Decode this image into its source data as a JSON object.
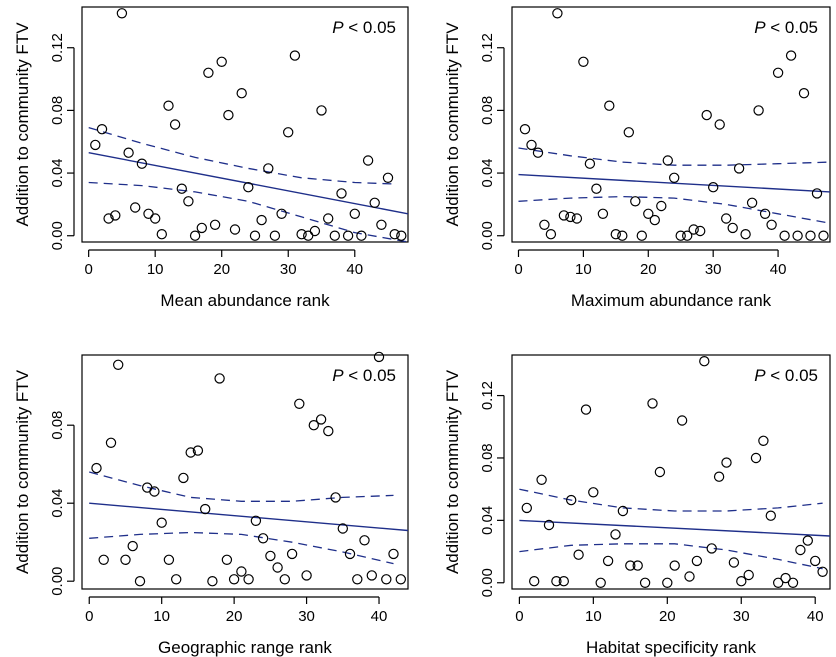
{
  "figure": {
    "p_label_italic": "P",
    "p_label_rest": " < 0.05"
  },
  "chart_data": [
    {
      "type": "scatter",
      "title": "",
      "xlabel": "Mean abundance rank",
      "ylabel": "Addition to community FTV",
      "annotation": "P < 0.05",
      "xlim": [
        -1,
        48
      ],
      "ylim": [
        -0.004,
        0.146
      ],
      "xticks": [
        0,
        10,
        20,
        30,
        40
      ],
      "yticks": [
        0.0,
        0.04,
        0.08,
        0.12
      ],
      "ytick_labels": [
        "0.00",
        "0.04",
        "0.08",
        "0.12"
      ],
      "points": [
        [
          1,
          0.058
        ],
        [
          2,
          0.068
        ],
        [
          3,
          0.011
        ],
        [
          4,
          0.013
        ],
        [
          5,
          0.142
        ],
        [
          6,
          0.053
        ],
        [
          7,
          0.018
        ],
        [
          8,
          0.046
        ],
        [
          9,
          0.014
        ],
        [
          10,
          0.011
        ],
        [
          11,
          0.001
        ],
        [
          12,
          0.083
        ],
        [
          13,
          0.071
        ],
        [
          14,
          0.03
        ],
        [
          15,
          0.022
        ],
        [
          16,
          0.0
        ],
        [
          17,
          0.005
        ],
        [
          18,
          0.104
        ],
        [
          19,
          0.007
        ],
        [
          20,
          0.111
        ],
        [
          21,
          0.077
        ],
        [
          22,
          0.004
        ],
        [
          23,
          0.091
        ],
        [
          24,
          0.031
        ],
        [
          25,
          0.0
        ],
        [
          26,
          0.01
        ],
        [
          27,
          0.043
        ],
        [
          28,
          0.0
        ],
        [
          29,
          0.014
        ],
        [
          30,
          0.066
        ],
        [
          31,
          0.115
        ],
        [
          32,
          0.001
        ],
        [
          33,
          0.0
        ],
        [
          34,
          0.003
        ],
        [
          35,
          0.08
        ],
        [
          36,
          0.011
        ],
        [
          37,
          0.0
        ],
        [
          38,
          0.027
        ],
        [
          39,
          0.0
        ],
        [
          40,
          0.014
        ],
        [
          41,
          0.0
        ],
        [
          42,
          0.048
        ],
        [
          43,
          0.021
        ],
        [
          44,
          0.007
        ],
        [
          45,
          0.037
        ],
        [
          46,
          0.001
        ],
        [
          47,
          0.0
        ]
      ],
      "fit": [
        [
          0,
          0.053
        ],
        [
          48,
          0.014
        ]
      ],
      "ci_upper": [
        [
          0,
          0.069
        ],
        [
          8,
          0.059
        ],
        [
          16,
          0.05
        ],
        [
          24,
          0.043
        ],
        [
          32,
          0.037
        ],
        [
          40,
          0.034
        ],
        [
          46,
          0.033
        ]
      ],
      "ci_lower": [
        [
          0,
          0.034
        ],
        [
          8,
          0.032
        ],
        [
          16,
          0.028
        ],
        [
          24,
          0.022
        ],
        [
          32,
          0.012
        ],
        [
          40,
          0.002
        ],
        [
          48,
          -0.004
        ]
      ]
    },
    {
      "type": "scatter",
      "title": "",
      "xlabel": "Maximum abundance rank",
      "ylabel": "Addition to community FTV",
      "annotation": "P < 0.05",
      "xlim": [
        -1,
        48
      ],
      "ylim": [
        -0.004,
        0.146
      ],
      "xticks": [
        0,
        10,
        20,
        30,
        40
      ],
      "yticks": [
        0.0,
        0.04,
        0.08,
        0.12
      ],
      "ytick_labels": [
        "0.00",
        "0.04",
        "0.08",
        "0.12"
      ],
      "points": [
        [
          1,
          0.068
        ],
        [
          2,
          0.058
        ],
        [
          3,
          0.053
        ],
        [
          4,
          0.007
        ],
        [
          5,
          0.001
        ],
        [
          6,
          0.142
        ],
        [
          7,
          0.013
        ],
        [
          8,
          0.012
        ],
        [
          9,
          0.011
        ],
        [
          10,
          0.111
        ],
        [
          11,
          0.046
        ],
        [
          12,
          0.03
        ],
        [
          13,
          0.014
        ],
        [
          14,
          0.083
        ],
        [
          15,
          0.001
        ],
        [
          16,
          0.0
        ],
        [
          17,
          0.066
        ],
        [
          18,
          0.022
        ],
        [
          19,
          0.0
        ],
        [
          20,
          0.014
        ],
        [
          21,
          0.01
        ],
        [
          22,
          0.019
        ],
        [
          23,
          0.048
        ],
        [
          24,
          0.037
        ],
        [
          25,
          0.0
        ],
        [
          26,
          0.0
        ],
        [
          27,
          0.004
        ],
        [
          28,
          0.003
        ],
        [
          29,
          0.077
        ],
        [
          30,
          0.031
        ],
        [
          31,
          0.071
        ],
        [
          32,
          0.011
        ],
        [
          33,
          0.005
        ],
        [
          34,
          0.043
        ],
        [
          35,
          0.001
        ],
        [
          36,
          0.021
        ],
        [
          37,
          0.08
        ],
        [
          38,
          0.014
        ],
        [
          39,
          0.007
        ],
        [
          40,
          0.104
        ],
        [
          41,
          0.0
        ],
        [
          42,
          0.115
        ],
        [
          43,
          0.0
        ],
        [
          44,
          0.091
        ],
        [
          45,
          0.0
        ],
        [
          46,
          0.027
        ],
        [
          47,
          0.0
        ]
      ],
      "fit": [
        [
          0,
          0.039
        ],
        [
          48,
          0.028
        ]
      ],
      "ci_upper": [
        [
          0,
          0.056
        ],
        [
          8,
          0.051
        ],
        [
          16,
          0.047
        ],
        [
          24,
          0.045
        ],
        [
          32,
          0.045
        ],
        [
          40,
          0.046
        ],
        [
          48,
          0.047
        ]
      ],
      "ci_lower": [
        [
          0,
          0.022
        ],
        [
          8,
          0.024
        ],
        [
          16,
          0.025
        ],
        [
          24,
          0.024
        ],
        [
          32,
          0.02
        ],
        [
          40,
          0.014
        ],
        [
          48,
          0.008
        ]
      ]
    },
    {
      "type": "scatter",
      "title": "",
      "xlabel": "Geographic range rank",
      "ylabel": "Addition to community FTV",
      "annotation": "P < 0.05",
      "xlim": [
        -1,
        44
      ],
      "ylim": [
        -0.004,
        0.116
      ],
      "xticks": [
        0,
        10,
        20,
        30,
        40
      ],
      "yticks": [
        0.0,
        0.04,
        0.08
      ],
      "ytick_labels": [
        "0.00",
        "0.04",
        "0.08"
      ],
      "points": [
        [
          1,
          0.058
        ],
        [
          2,
          0.011
        ],
        [
          3,
          0.071
        ],
        [
          4,
          0.111
        ],
        [
          5,
          0.011
        ],
        [
          6,
          0.018
        ],
        [
          7,
          0.0
        ],
        [
          8,
          0.048
        ],
        [
          9,
          0.046
        ],
        [
          10,
          0.03
        ],
        [
          11,
          0.011
        ],
        [
          12,
          0.001
        ],
        [
          13,
          0.053
        ],
        [
          14,
          0.066
        ],
        [
          15,
          0.067
        ],
        [
          16,
          0.037
        ],
        [
          17,
          0.0
        ],
        [
          18,
          0.104
        ],
        [
          19,
          0.011
        ],
        [
          20,
          0.001
        ],
        [
          21,
          0.005
        ],
        [
          22,
          0.001
        ],
        [
          23,
          0.031
        ],
        [
          24,
          0.022
        ],
        [
          25,
          0.013
        ],
        [
          26,
          0.007
        ],
        [
          27,
          0.001
        ],
        [
          28,
          0.014
        ],
        [
          29,
          0.091
        ],
        [
          30,
          0.003
        ],
        [
          31,
          0.08
        ],
        [
          32,
          0.083
        ],
        [
          33,
          0.077
        ],
        [
          34,
          0.043
        ],
        [
          35,
          0.027
        ],
        [
          36,
          0.014
        ],
        [
          37,
          0.001
        ],
        [
          38,
          0.021
        ],
        [
          39,
          0.003
        ],
        [
          40,
          0.115
        ],
        [
          41,
          0.001
        ],
        [
          42,
          0.014
        ],
        [
          43,
          0.001
        ]
      ],
      "fit": [
        [
          0,
          0.04
        ],
        [
          44,
          0.026
        ]
      ],
      "ci_upper": [
        [
          0,
          0.056
        ],
        [
          7,
          0.049
        ],
        [
          14,
          0.043
        ],
        [
          21,
          0.041
        ],
        [
          28,
          0.041
        ],
        [
          35,
          0.043
        ],
        [
          42,
          0.044
        ]
      ],
      "ci_lower": [
        [
          0,
          0.022
        ],
        [
          7,
          0.024
        ],
        [
          14,
          0.025
        ],
        [
          21,
          0.024
        ],
        [
          28,
          0.02
        ],
        [
          35,
          0.015
        ],
        [
          42,
          0.009
        ]
      ]
    },
    {
      "type": "scatter",
      "title": "",
      "xlabel": "Habitat specificity rank",
      "ylabel": "Addition to community FTV",
      "annotation": "P < 0.05",
      "xlim": [
        -1,
        42
      ],
      "ylim": [
        -0.004,
        0.146
      ],
      "xticks": [
        0,
        10,
        20,
        30,
        40
      ],
      "yticks": [
        0.0,
        0.04,
        0.08,
        0.12
      ],
      "ytick_labels": [
        "0.00",
        "0.04",
        "0.08",
        "0.12"
      ],
      "points": [
        [
          1,
          0.048
        ],
        [
          2,
          0.001
        ],
        [
          3,
          0.066
        ],
        [
          4,
          0.037
        ],
        [
          5,
          0.001
        ],
        [
          6,
          0.001
        ],
        [
          7,
          0.053
        ],
        [
          8,
          0.018
        ],
        [
          9,
          0.111
        ],
        [
          10,
          0.058
        ],
        [
          11,
          0.0
        ],
        [
          12,
          0.014
        ],
        [
          13,
          0.031
        ],
        [
          14,
          0.046
        ],
        [
          15,
          0.011
        ],
        [
          16,
          0.011
        ],
        [
          17,
          0.0
        ],
        [
          18,
          0.115
        ],
        [
          19,
          0.071
        ],
        [
          20,
          0.0
        ],
        [
          21,
          0.011
        ],
        [
          22,
          0.104
        ],
        [
          23,
          0.004
        ],
        [
          24,
          0.014
        ],
        [
          25,
          0.142
        ],
        [
          26,
          0.022
        ],
        [
          27,
          0.068
        ],
        [
          28,
          0.077
        ],
        [
          29,
          0.013
        ],
        [
          30,
          0.001
        ],
        [
          31,
          0.005
        ],
        [
          32,
          0.08
        ],
        [
          33,
          0.091
        ],
        [
          34,
          0.043
        ],
        [
          35,
          0.0
        ],
        [
          36,
          0.003
        ],
        [
          37,
          0.0
        ],
        [
          38,
          0.021
        ],
        [
          39,
          0.027
        ],
        [
          40,
          0.014
        ],
        [
          41,
          0.007
        ]
      ],
      "fit": [
        [
          0,
          0.04
        ],
        [
          42,
          0.03
        ]
      ],
      "ci_upper": [
        [
          0,
          0.06
        ],
        [
          7,
          0.053
        ],
        [
          14,
          0.048
        ],
        [
          21,
          0.046
        ],
        [
          28,
          0.046
        ],
        [
          35,
          0.048
        ],
        [
          41,
          0.051
        ]
      ],
      "ci_lower": [
        [
          0,
          0.02
        ],
        [
          7,
          0.024
        ],
        [
          14,
          0.025
        ],
        [
          21,
          0.025
        ],
        [
          28,
          0.021
        ],
        [
          35,
          0.015
        ],
        [
          41,
          0.009
        ]
      ]
    }
  ]
}
